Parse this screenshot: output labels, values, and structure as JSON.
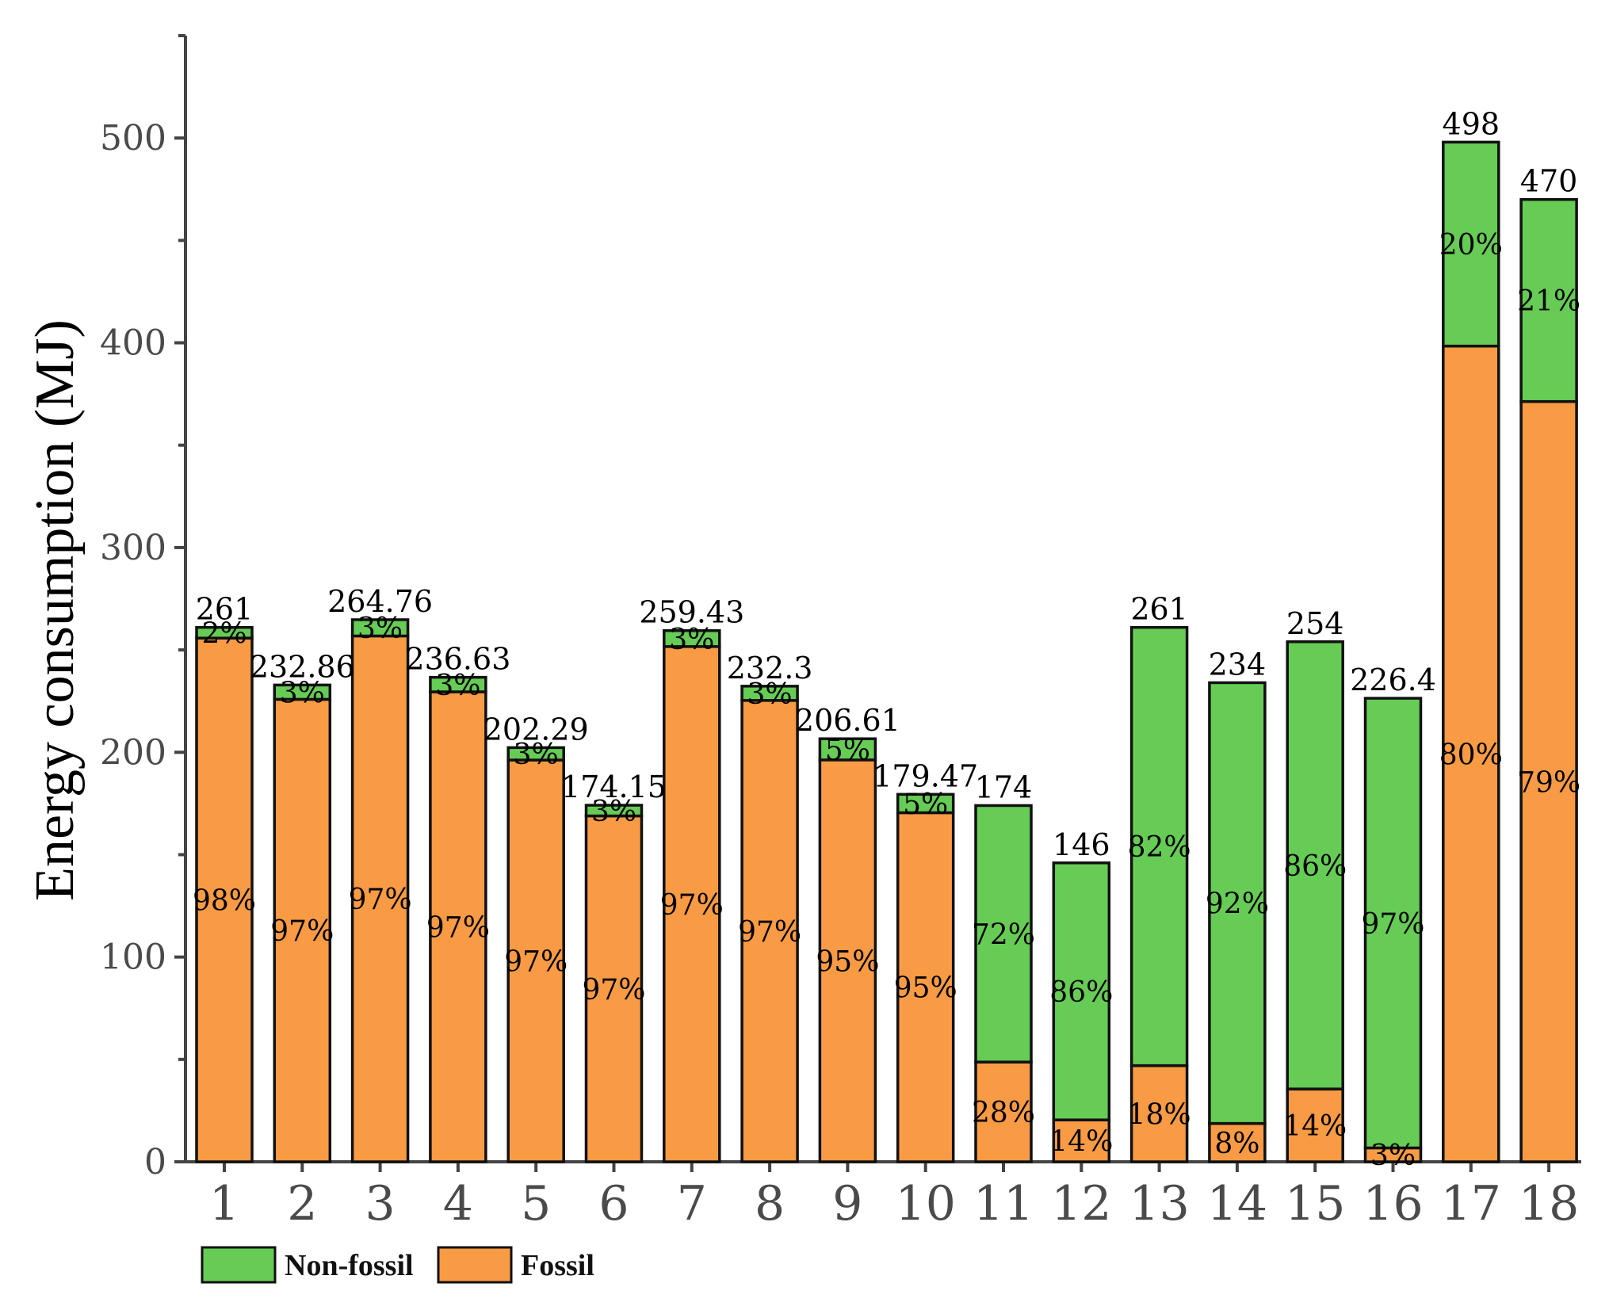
{
  "chart_data": {
    "type": "bar",
    "stacked": true,
    "title": "",
    "xlabel": "",
    "ylabel": "Energy consumption (MJ)",
    "ylim": [
      0,
      550
    ],
    "yticks": [
      0,
      100,
      200,
      300,
      400,
      500
    ],
    "categories": [
      "1",
      "2",
      "3",
      "4",
      "5",
      "6",
      "7",
      "8",
      "9",
      "10",
      "11",
      "12",
      "13",
      "14",
      "15",
      "16",
      "17",
      "18"
    ],
    "totals": [
      261,
      232.86,
      264.76,
      236.63,
      202.29,
      174.15,
      259.43,
      232.3,
      206.61,
      179.47,
      174,
      146,
      261,
      234,
      254,
      226.4,
      498,
      470
    ],
    "total_labels": [
      "261",
      "232.86",
      "264.76",
      "236.63",
      "202.29",
      "174.15",
      "259.43",
      "232.3",
      "206.61",
      "179.47",
      "174",
      "146",
      "261",
      "234",
      "254",
      "226.4",
      "498",
      "470"
    ],
    "series": [
      {
        "name": "Fossil",
        "color": "#f99b45",
        "values": [
          255.78,
          225.87,
          256.82,
          229.53,
          196.22,
          168.93,
          251.65,
          225.33,
          196.28,
          170.5,
          48.72,
          20.44,
          46.98,
          18.72,
          35.56,
          6.79,
          398.4,
          371.3
        ],
        "percent_labels": [
          "98%",
          "97%",
          "97%",
          "97%",
          "97%",
          "97%",
          "97%",
          "97%",
          "95%",
          "95%",
          "28%",
          "14%",
          "18%",
          "8%",
          "14%",
          "3%",
          "80%",
          "79%"
        ]
      },
      {
        "name": "Non-fossil",
        "color": "#66cc55",
        "values": [
          5.22,
          6.99,
          7.94,
          7.1,
          6.07,
          5.22,
          7.78,
          6.97,
          10.33,
          8.97,
          125.28,
          125.56,
          214.02,
          215.28,
          218.44,
          219.61,
          99.6,
          98.7
        ],
        "percent_labels": [
          "2%",
          "3%",
          "3%",
          "3%",
          "3%",
          "3%",
          "3%",
          "3%",
          "5%",
          "5%",
          "72%",
          "86%",
          "82%",
          "92%",
          "86%",
          "97%",
          "20%",
          "21%"
        ]
      }
    ],
    "legend": {
      "position": "bottom-left",
      "items": [
        {
          "name": "Non-fossil",
          "color": "#66cc55"
        },
        {
          "name": "Fossil",
          "color": "#f99b45"
        }
      ]
    }
  }
}
